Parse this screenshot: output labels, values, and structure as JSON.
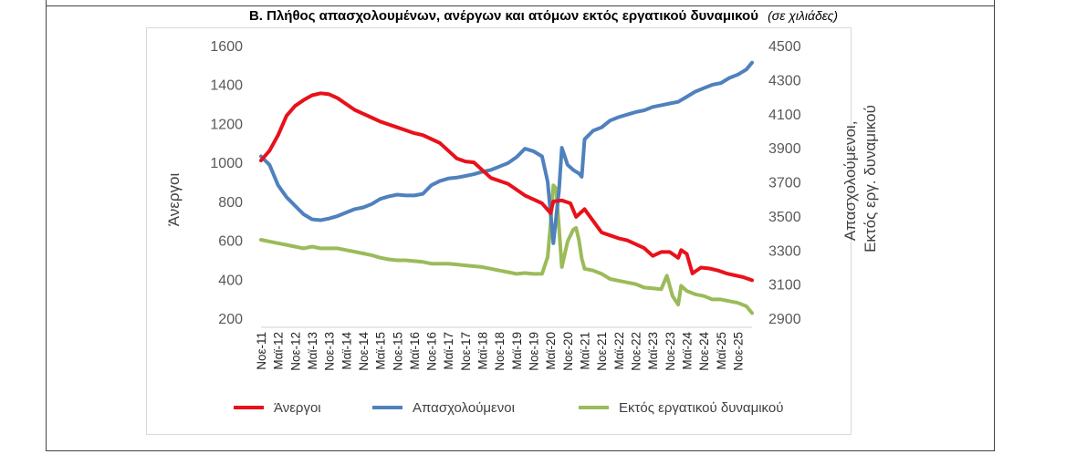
{
  "header": {
    "title": "Β. Πλήθος απασχολουμένων, ανέργων και ατόμων εκτός εργατικού δυναμικού",
    "unit_note": "(σε χιλιάδες)"
  },
  "colors": {
    "unemployed": "#e8111a",
    "employed": "#4f81bd",
    "inactive": "#9bbb59"
  },
  "chart_data": {
    "type": "line",
    "title": "Β. Πλήθος απασχολουμένων, ανέργων και ατόμων εκτός εργατικού δυναμικού",
    "subtitle": "(σε χιλιάδες)",
    "ylabel": "Άνεργοι",
    "y2label_lines": [
      "Απασχολούμενοι,",
      "Εκτός εργ. δυναμικού"
    ],
    "ylim": [
      200,
      1600
    ],
    "y_ticks": [
      "1600",
      "1400",
      "1200",
      "1000",
      "800",
      "600",
      "400",
      "200"
    ],
    "y2lim": [
      2900,
      4500
    ],
    "y2_ticks": [
      "4500",
      "4300",
      "4100",
      "3900",
      "3700",
      "3500",
      "3300",
      "3100",
      "2900"
    ],
    "x_ticks": [
      "Νοε-11",
      "Μαϊ-12",
      "Νοε-12",
      "Μαϊ-13",
      "Νοε-13",
      "Μαϊ-14",
      "Νοε-14",
      "Μαϊ-15",
      "Νοε-15",
      "Μαϊ-16",
      "Νοε-16",
      "Μαϊ-17",
      "Νοε-17",
      "Μαϊ-18",
      "Νοε-18",
      "Μαϊ-19",
      "Νοε-19",
      "Μαϊ-20",
      "Νοε-20",
      "Μαϊ-21",
      "Νοε-21",
      "Μαϊ-22",
      "Νοε-22",
      "Μαϊ-23",
      "Νοε-23",
      "Μαϊ-24",
      "Νοε-24",
      "Μαϊ-25",
      "Νοε-25"
    ],
    "legend": "bottom",
    "grid": false,
    "series": [
      {
        "name": "Άνεργοι",
        "axis": "left",
        "points": [
          [
            0,
            1010
          ],
          [
            3,
            1060
          ],
          [
            6,
            1140
          ],
          [
            9,
            1240
          ],
          [
            12,
            1290
          ],
          [
            15,
            1320
          ],
          [
            18,
            1345
          ],
          [
            21,
            1355
          ],
          [
            24,
            1350
          ],
          [
            27,
            1330
          ],
          [
            30,
            1300
          ],
          [
            33,
            1270
          ],
          [
            36,
            1250
          ],
          [
            39,
            1230
          ],
          [
            42,
            1210
          ],
          [
            45,
            1195
          ],
          [
            48,
            1180
          ],
          [
            51,
            1165
          ],
          [
            54,
            1150
          ],
          [
            57,
            1140
          ],
          [
            60,
            1120
          ],
          [
            63,
            1100
          ],
          [
            66,
            1060
          ],
          [
            69,
            1020
          ],
          [
            72,
            1005
          ],
          [
            75,
            1000
          ],
          [
            78,
            960
          ],
          [
            81,
            920
          ],
          [
            84,
            905
          ],
          [
            87,
            890
          ],
          [
            90,
            860
          ],
          [
            93,
            830
          ],
          [
            96,
            810
          ],
          [
            99,
            790
          ],
          [
            102,
            740
          ],
          [
            103,
            800
          ],
          [
            106,
            805
          ],
          [
            109,
            790
          ],
          [
            111,
            720
          ],
          [
            114,
            760
          ],
          [
            117,
            700
          ],
          [
            120,
            640
          ],
          [
            123,
            625
          ],
          [
            126,
            610
          ],
          [
            129,
            600
          ],
          [
            132,
            580
          ],
          [
            135,
            560
          ],
          [
            138,
            520
          ],
          [
            141,
            540
          ],
          [
            144,
            540
          ],
          [
            147,
            510
          ],
          [
            148,
            550
          ],
          [
            150,
            530
          ],
          [
            152,
            430
          ],
          [
            155,
            460
          ],
          [
            158,
            455
          ],
          [
            161,
            445
          ],
          [
            164,
            430
          ],
          [
            167,
            420
          ],
          [
            170,
            410
          ],
          [
            173,
            395
          ]
        ]
      },
      {
        "name": "Απασχολούμενοι",
        "axis": "right",
        "points": [
          [
            0,
            3850
          ],
          [
            3,
            3800
          ],
          [
            6,
            3680
          ],
          [
            9,
            3610
          ],
          [
            12,
            3560
          ],
          [
            15,
            3510
          ],
          [
            18,
            3480
          ],
          [
            21,
            3475
          ],
          [
            24,
            3485
          ],
          [
            27,
            3500
          ],
          [
            30,
            3520
          ],
          [
            33,
            3540
          ],
          [
            36,
            3550
          ],
          [
            39,
            3570
          ],
          [
            42,
            3600
          ],
          [
            45,
            3615
          ],
          [
            48,
            3625
          ],
          [
            51,
            3620
          ],
          [
            54,
            3620
          ],
          [
            57,
            3630
          ],
          [
            60,
            3680
          ],
          [
            63,
            3705
          ],
          [
            66,
            3720
          ],
          [
            69,
            3725
          ],
          [
            72,
            3735
          ],
          [
            75,
            3745
          ],
          [
            78,
            3760
          ],
          [
            81,
            3770
          ],
          [
            84,
            3790
          ],
          [
            87,
            3810
          ],
          [
            90,
            3845
          ],
          [
            93,
            3895
          ],
          [
            96,
            3880
          ],
          [
            99,
            3850
          ],
          [
            101,
            3700
          ],
          [
            103,
            3340
          ],
          [
            105,
            3650
          ],
          [
            106,
            3900
          ],
          [
            108,
            3800
          ],
          [
            110,
            3770
          ],
          [
            112,
            3750
          ],
          [
            113,
            3730
          ],
          [
            114,
            3950
          ],
          [
            117,
            4000
          ],
          [
            120,
            4020
          ],
          [
            123,
            4060
          ],
          [
            126,
            4080
          ],
          [
            129,
            4095
          ],
          [
            132,
            4110
          ],
          [
            135,
            4120
          ],
          [
            138,
            4140
          ],
          [
            141,
            4150
          ],
          [
            144,
            4160
          ],
          [
            147,
            4170
          ],
          [
            150,
            4200
          ],
          [
            153,
            4230
          ],
          [
            156,
            4250
          ],
          [
            159,
            4270
          ],
          [
            162,
            4280
          ],
          [
            165,
            4310
          ],
          [
            168,
            4330
          ],
          [
            171,
            4360
          ],
          [
            173,
            4400
          ]
        ]
      },
      {
        "name": "Εκτός εργατικού δυναμικού",
        "axis": "right",
        "points": [
          [
            0,
            3360
          ],
          [
            3,
            3350
          ],
          [
            6,
            3340
          ],
          [
            9,
            3330
          ],
          [
            12,
            3320
          ],
          [
            15,
            3310
          ],
          [
            18,
            3320
          ],
          [
            21,
            3310
          ],
          [
            24,
            3310
          ],
          [
            27,
            3310
          ],
          [
            30,
            3300
          ],
          [
            33,
            3290
          ],
          [
            36,
            3280
          ],
          [
            39,
            3270
          ],
          [
            42,
            3255
          ],
          [
            45,
            3245
          ],
          [
            48,
            3240
          ],
          [
            51,
            3240
          ],
          [
            54,
            3235
          ],
          [
            57,
            3230
          ],
          [
            60,
            3220
          ],
          [
            63,
            3220
          ],
          [
            66,
            3220
          ],
          [
            69,
            3215
          ],
          [
            72,
            3210
          ],
          [
            75,
            3205
          ],
          [
            78,
            3200
          ],
          [
            81,
            3190
          ],
          [
            84,
            3180
          ],
          [
            87,
            3170
          ],
          [
            90,
            3160
          ],
          [
            93,
            3165
          ],
          [
            96,
            3160
          ],
          [
            99,
            3160
          ],
          [
            101,
            3260
          ],
          [
            102,
            3450
          ],
          [
            103,
            3680
          ],
          [
            104,
            3660
          ],
          [
            106,
            3200
          ],
          [
            108,
            3350
          ],
          [
            110,
            3420
          ],
          [
            111,
            3430
          ],
          [
            112,
            3360
          ],
          [
            113,
            3250
          ],
          [
            114,
            3190
          ],
          [
            117,
            3180
          ],
          [
            120,
            3160
          ],
          [
            123,
            3130
          ],
          [
            126,
            3120
          ],
          [
            129,
            3110
          ],
          [
            132,
            3100
          ],
          [
            135,
            3080
          ],
          [
            138,
            3075
          ],
          [
            141,
            3070
          ],
          [
            143,
            3150
          ],
          [
            145,
            3030
          ],
          [
            147,
            2980
          ],
          [
            148,
            3090
          ],
          [
            150,
            3060
          ],
          [
            153,
            3040
          ],
          [
            156,
            3030
          ],
          [
            159,
            3010
          ],
          [
            162,
            3010
          ],
          [
            165,
            3000
          ],
          [
            168,
            2990
          ],
          [
            171,
            2970
          ],
          [
            173,
            2930
          ]
        ]
      }
    ]
  }
}
